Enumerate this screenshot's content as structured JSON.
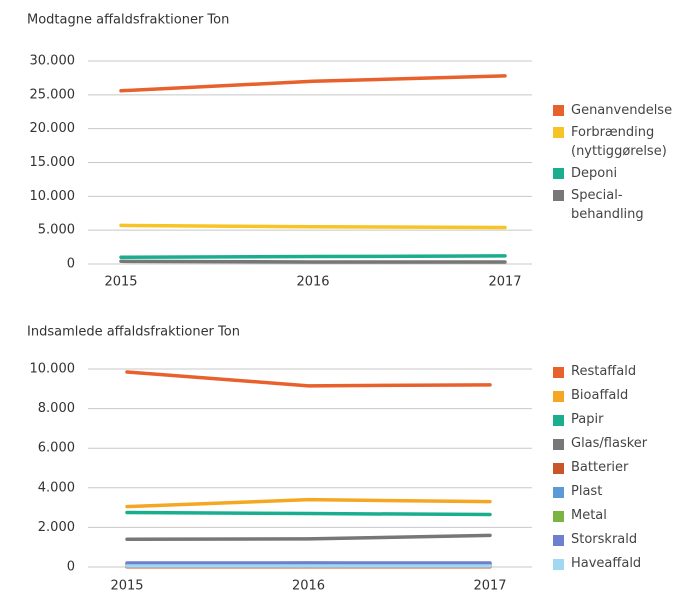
{
  "chart_data": [
    {
      "type": "line",
      "title": "Modtagne affaldsfraktioner Ton",
      "categories": [
        "2015",
        "2016",
        "2017"
      ],
      "ylim": [
        0,
        30000
      ],
      "yticks": [
        0,
        {
          "value": 5000,
          "label": "5.000"
        },
        {
          "value": 10000,
          "label": "10.000"
        },
        {
          "value": 15000,
          "label": "15.000"
        },
        {
          "value": 20000,
          "label": "20.000"
        },
        {
          "value": 25000,
          "label": "25.000"
        },
        {
          "value": 30000,
          "label": "30.000"
        }
      ],
      "grid": true,
      "series": [
        {
          "name": "Genanvendelse",
          "color": "#e8612c",
          "values": [
            25600,
            27000,
            27800
          ]
        },
        {
          "name": "Forbrænding\n(nyttiggørelse)",
          "color": "#f7c325",
          "values": [
            5700,
            5500,
            5400
          ]
        },
        {
          "name": "Deponi",
          "color": "#1aae8f",
          "values": [
            1000,
            1100,
            1200
          ]
        },
        {
          "name": "Special-\nbehandling",
          "color": "#777777",
          "values": [
            400,
            300,
            300
          ]
        }
      ]
    },
    {
      "type": "line",
      "title": "Indsamlede affaldsfraktioner Ton",
      "categories": [
        "2015",
        "2016",
        "2017"
      ],
      "ylim": [
        0,
        10000
      ],
      "yticks": [
        0,
        {
          "value": 2000,
          "label": "2.000"
        },
        {
          "value": 4000,
          "label": "4.000"
        },
        {
          "value": 6000,
          "label": "6.000"
        },
        {
          "value": 8000,
          "label": "8.000"
        },
        {
          "value": 10000,
          "label": "10.000"
        }
      ],
      "grid": true,
      "series": [
        {
          "name": "Restaffald",
          "color": "#e8612c",
          "values": [
            9850,
            9150,
            9200
          ]
        },
        {
          "name": "Bioaffald",
          "color": "#f5a623",
          "values": [
            3050,
            3400,
            3300
          ]
        },
        {
          "name": "Papir",
          "color": "#1aae8f",
          "values": [
            2750,
            2700,
            2650
          ]
        },
        {
          "name": "Glas/flasker",
          "color": "#777777",
          "values": [
            1400,
            1420,
            1600
          ]
        },
        {
          "name": "Batterier",
          "color": "#c8562a",
          "values": [
            10,
            10,
            10
          ]
        },
        {
          "name": "Plast",
          "color": "#5b9bd5",
          "values": [
            150,
            200,
            150
          ]
        },
        {
          "name": "Metal",
          "color": "#7cb342",
          "values": [
            100,
            100,
            100
          ]
        },
        {
          "name": "Storskrald",
          "color": "#6f7fd0",
          "values": [
            200,
            200,
            200
          ]
        },
        {
          "name": "Haveaffald",
          "color": "#9fd8f0",
          "values": [
            50,
            50,
            50
          ]
        }
      ]
    }
  ]
}
